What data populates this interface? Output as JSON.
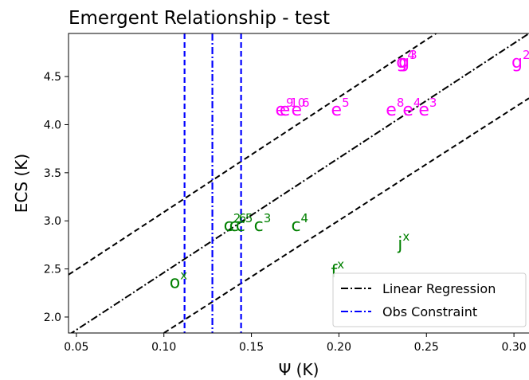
{
  "chart_data": {
    "type": "text-scatter",
    "title": "Emergent Relationship - test",
    "x_label": "Ψ (K)",
    "y_label": "ECS (K)",
    "xlim": [
      0.0455,
      0.3086
    ],
    "ylim": [
      1.834,
      4.948
    ],
    "xticks": [
      {
        "value": 0.05,
        "label": "0.05"
      },
      {
        "value": 0.1,
        "label": "0.10"
      },
      {
        "value": 0.15,
        "label": "0.15"
      },
      {
        "value": 0.2,
        "label": "0.20"
      },
      {
        "value": 0.25,
        "label": "0.25"
      },
      {
        "value": 0.3,
        "label": "0.30"
      }
    ],
    "yticks": [
      {
        "value": 2,
        "label": "2.0"
      },
      2.5,
      {
        "value": 3,
        "label": "3.0"
      },
      3.5,
      {
        "value": 4,
        "label": "4.0"
      },
      4.5
    ],
    "points": [
      {
        "label": "g",
        "sup": "4",
        "x": 0.2327,
        "y": 4.66,
        "color": "#ff00ff"
      },
      {
        "label": "g",
        "sup": "3",
        "x": 0.234,
        "y": 4.66,
        "color": "#ff00ff"
      },
      {
        "label": "g",
        "sup": "2",
        "x": 0.2986,
        "y": 4.66,
        "color": "#ff00ff"
      },
      {
        "label": "e",
        "sup": "9",
        "x": 0.1636,
        "y": 4.16,
        "color": "#ff00ff"
      },
      {
        "label": "e",
        "sup": "10",
        "x": 0.166,
        "y": 4.16,
        "color": "#ff00ff"
      },
      {
        "label": "e",
        "sup": "6",
        "x": 0.1727,
        "y": 4.16,
        "color": "#ff00ff"
      },
      {
        "label": "e",
        "sup": "5",
        "x": 0.1955,
        "y": 4.16,
        "color": "#ff00ff"
      },
      {
        "label": "e",
        "sup": "8",
        "x": 0.2268,
        "y": 4.16,
        "color": "#ff00ff"
      },
      {
        "label": "e",
        "sup": "4",
        "x": 0.2364,
        "y": 4.16,
        "color": "#ff00ff"
      },
      {
        "label": "e",
        "sup": "3",
        "x": 0.2455,
        "y": 4.16,
        "color": "#ff00ff"
      },
      {
        "label": "c",
        "sup": "2",
        "x": 0.1341,
        "y": 2.96,
        "color": "#008000"
      },
      {
        "label": "c",
        "sup": "6",
        "x": 0.1373,
        "y": 2.96,
        "color": "#008000"
      },
      {
        "label": "c",
        "sup": "5",
        "x": 0.141,
        "y": 2.96,
        "color": "#008000"
      },
      {
        "label": "c",
        "sup": "3",
        "x": 0.1514,
        "y": 2.96,
        "color": "#008000"
      },
      {
        "label": "c",
        "sup": "4",
        "x": 0.1727,
        "y": 2.96,
        "color": "#008000"
      },
      {
        "label": "j",
        "sup": "x",
        "x": 0.2336,
        "y": 2.77,
        "color": "#008000"
      },
      {
        "label": "f",
        "sup": "x",
        "x": 0.1955,
        "y": 2.48,
        "color": "#008000"
      },
      {
        "label": "o",
        "sup": "x",
        "x": 0.1032,
        "y": 2.37,
        "color": "#008000"
      }
    ],
    "lines": [
      {
        "name": "Linear Regression",
        "color": "#000000",
        "dash": "dashdot",
        "x": [
          0.0455,
          0.3086
        ],
        "values": [
          1.813,
          4.948
        ]
      },
      {
        "color": "#000000",
        "dash": "dashed",
        "x": [
          0.0455,
          0.2555
        ],
        "values": [
          2.44,
          4.948
        ]
      },
      {
        "color": "#000000",
        "dash": "dashed",
        "x": [
          0.1,
          0.3086
        ],
        "values": [
          1.834,
          4.275
        ]
      }
    ],
    "vlines": [
      {
        "name": "Obs Constraint",
        "color": "#0000ff",
        "dash": "dashdot",
        "x": 0.1277
      },
      {
        "color": "#0000ff",
        "dash": "dashed",
        "x": 0.1118
      },
      {
        "color": "#0000ff",
        "dash": "dashed",
        "x": 0.1441
      }
    ],
    "legend": "lower right"
  }
}
